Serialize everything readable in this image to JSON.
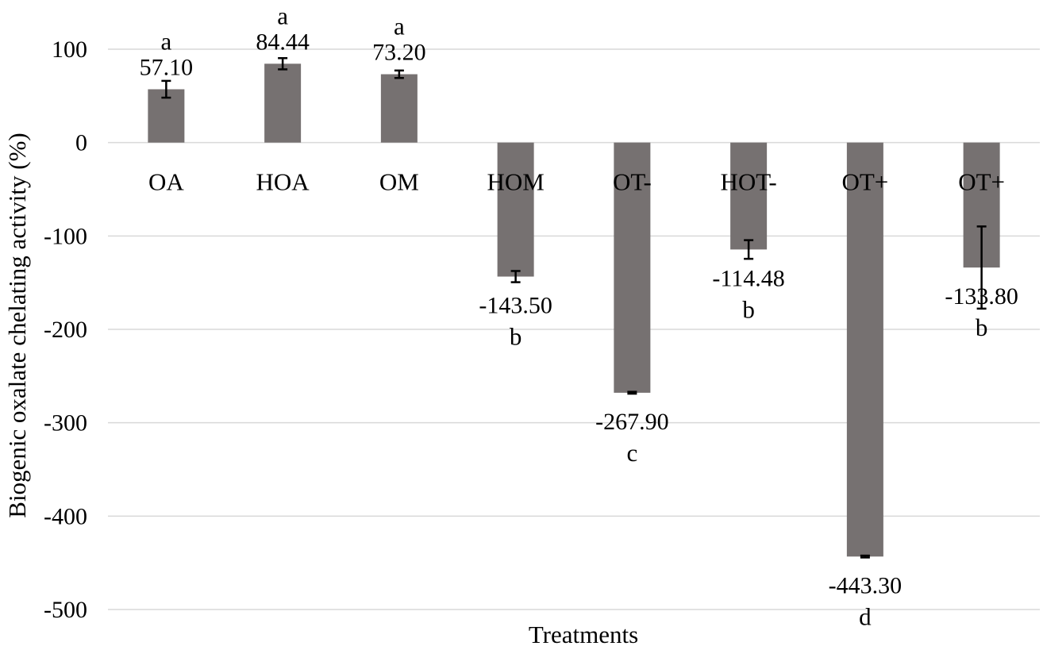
{
  "chart_data": {
    "type": "bar",
    "title": "",
    "xlabel": "Treatments",
    "ylabel": "Biogenic oxalate  chelating activity (%)",
    "ylim": [
      -500,
      100
    ],
    "yticks": [
      100,
      0,
      -100,
      -200,
      -300,
      -400,
      -500
    ],
    "grid": true,
    "legend": "none",
    "categories": [
      "OA",
      "HOA",
      "OM",
      "HOM",
      "OT-",
      "HOT-",
      "OT+",
      "OT+"
    ],
    "series": [
      {
        "values": [
          57.1,
          84.44,
          73.2,
          -143.5,
          -267.9,
          -114.48,
          -443.3,
          -133.8
        ],
        "value_labels": [
          "57.10",
          "84.44",
          "73.20",
          "-143.50",
          "-267.90",
          "-114.48",
          "-443.30",
          "-133.80"
        ],
        "errors": [
          9,
          6,
          4,
          6,
          1,
          10,
          1,
          44
        ],
        "letters": [
          "a",
          "a",
          "a",
          "b",
          "c",
          "b",
          "d",
          "b"
        ],
        "color": "#767171"
      }
    ]
  }
}
